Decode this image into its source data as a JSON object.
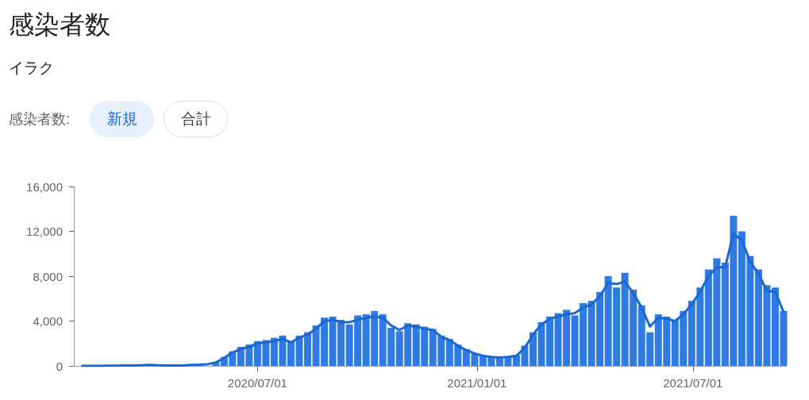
{
  "chart_data": {
    "type": "bar",
    "title": "感染者数",
    "subtitle": "イラク",
    "annotations": [
      "感染者数:",
      "新規",
      "合計"
    ],
    "x": [
      "2020-02-05",
      "2020-02-12",
      "2020-02-19",
      "2020-02-26",
      "2020-03-04",
      "2020-03-11",
      "2020-03-18",
      "2020-03-25",
      "2020-04-01",
      "2020-04-08",
      "2020-04-15",
      "2020-04-22",
      "2020-04-29",
      "2020-05-06",
      "2020-05-13",
      "2020-05-20",
      "2020-05-27",
      "2020-06-03",
      "2020-06-10",
      "2020-06-17",
      "2020-06-24",
      "2020-07-01",
      "2020-07-08",
      "2020-07-15",
      "2020-07-22",
      "2020-07-29",
      "2020-08-05",
      "2020-08-12",
      "2020-08-19",
      "2020-08-26",
      "2020-09-02",
      "2020-09-09",
      "2020-09-16",
      "2020-09-23",
      "2020-09-30",
      "2020-10-07",
      "2020-10-14",
      "2020-10-21",
      "2020-10-28",
      "2020-11-04",
      "2020-11-11",
      "2020-11-18",
      "2020-11-25",
      "2020-12-02",
      "2020-12-09",
      "2020-12-16",
      "2020-12-23",
      "2020-12-30",
      "2021-01-06",
      "2021-01-13",
      "2021-01-20",
      "2021-01-27",
      "2021-02-03",
      "2021-02-10",
      "2021-02-17",
      "2021-02-24",
      "2021-03-03",
      "2021-03-10",
      "2021-03-17",
      "2021-03-24",
      "2021-03-31",
      "2021-04-07",
      "2021-04-14",
      "2021-04-21",
      "2021-04-28",
      "2021-05-05",
      "2021-05-12",
      "2021-05-19",
      "2021-05-26",
      "2021-06-02",
      "2021-06-09",
      "2021-06-16",
      "2021-06-23",
      "2021-06-30",
      "2021-07-07",
      "2021-07-14",
      "2021-07-21",
      "2021-07-28",
      "2021-08-04",
      "2021-08-11",
      "2021-08-18",
      "2021-08-25",
      "2021-09-01",
      "2021-09-08",
      "2021-09-15"
    ],
    "series": [
      {
        "color": "#2f7be3",
        "values": [
          null,
          null,
          null,
          null,
          null,
          null,
          null,
          null,
          null,
          null,
          null,
          null,
          null,
          null,
          null,
          null,
          350,
          800,
          1300,
          1700,
          1900,
          2200,
          2300,
          2500,
          2700,
          2200,
          2700,
          3000,
          3600,
          4300,
          4400,
          4100,
          3700,
          4500,
          4600,
          4900,
          4600,
          3400,
          3100,
          3800,
          3700,
          3500,
          3300,
          2700,
          2400,
          1900,
          1500,
          1100,
          900,
          800,
          700,
          850,
          950,
          1800,
          3000,
          3900,
          4400,
          4700,
          5000,
          4500,
          5600,
          5800,
          6600,
          8000,
          7000,
          8300,
          6800,
          5400,
          3000,
          4600,
          4400,
          4100,
          4900,
          5800,
          7000,
          8600,
          9600,
          9200,
          13400,
          12000,
          9800,
          8600,
          7200,
          7000,
          4900
        ]
      },
      {
        "type": "line",
        "color": "#1967d2",
        "values": [
          0,
          0,
          0,
          10,
          20,
          30,
          30,
          50,
          80,
          60,
          40,
          30,
          40,
          80,
          100,
          150,
          300,
          700,
          1200,
          1500,
          1700,
          2000,
          2100,
          2200,
          2400,
          2100,
          2500,
          2800,
          3300,
          4000,
          4100,
          3900,
          3900,
          4100,
          4300,
          4400,
          4300,
          3600,
          3200,
          3600,
          3500,
          3300,
          3200,
          2600,
          2300,
          1800,
          1400,
          1100,
          900,
          800,
          750,
          800,
          900,
          1600,
          2800,
          3700,
          4200,
          4400,
          4600,
          4700,
          5200,
          5500,
          6200,
          7400,
          7300,
          7500,
          6500,
          5200,
          3500,
          4300,
          4200,
          4000,
          4600,
          5500,
          6600,
          8000,
          8800,
          8800,
          11800,
          11200,
          9300,
          8200,
          6700,
          6600,
          4800
        ]
      }
    ],
    "xlim": [
      "2020-01-29",
      "2021-09-17"
    ],
    "xticks": [
      {
        "value": "2020-07-01",
        "label": "2020/07/01"
      },
      {
        "value": "2021-01-01",
        "label": "2021/01/01"
      },
      {
        "value": "2021-07-01",
        "label": "2021/07/01"
      }
    ],
    "ylim": [
      0,
      16000
    ],
    "yticks": [
      {
        "value": 0,
        "label": "0"
      },
      {
        "value": 4000,
        "label": "4,000"
      },
      {
        "value": 8000,
        "label": "8,000"
      },
      {
        "value": 12000,
        "label": "12,000"
      },
      {
        "value": 16000,
        "label": "16,000"
      }
    ],
    "grid": false,
    "marker": "none",
    "line_style": "solid"
  }
}
